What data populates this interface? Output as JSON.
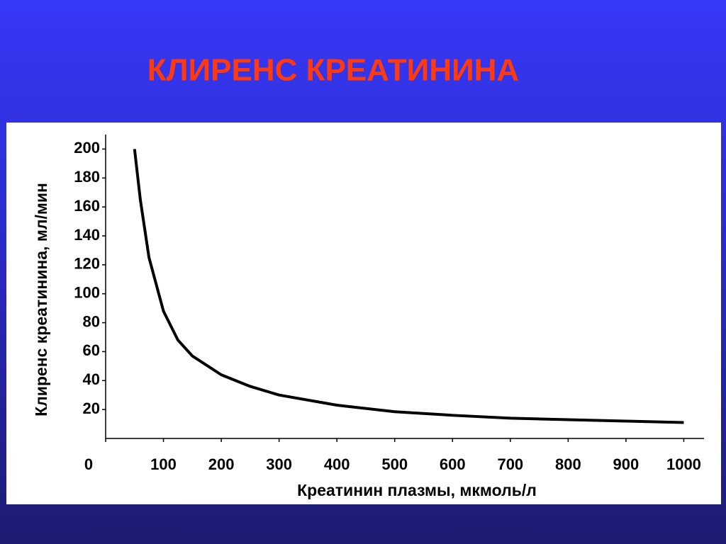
{
  "chart_data": {
    "type": "line",
    "title": "КЛИРЕНС КРЕАТИНИНА",
    "x_label": "Креатинин плазмы, мкмоль/л",
    "y_label": "Клиренс креатинина, мл/мин",
    "x": [
      50,
      60,
      75,
      100,
      125,
      150,
      200,
      250,
      300,
      400,
      500,
      600,
      700,
      800,
      900,
      1000
    ],
    "series": [
      {
        "name": "Клиренс креатинина",
        "color": "#000000",
        "values": [
          200,
          165,
          125,
          88,
          68,
          57,
          44,
          36,
          30,
          23,
          18.5,
          16,
          14,
          13,
          12,
          11
        ]
      }
    ],
    "xlim": [
      0,
      1035
    ],
    "ylim": [
      0,
      210
    ],
    "xticks": [
      0,
      100,
      200,
      300,
      400,
      500,
      600,
      700,
      800,
      900,
      1000
    ],
    "yticks": [
      20,
      40,
      60,
      80,
      100,
      120,
      140,
      160,
      180,
      200
    ]
  }
}
